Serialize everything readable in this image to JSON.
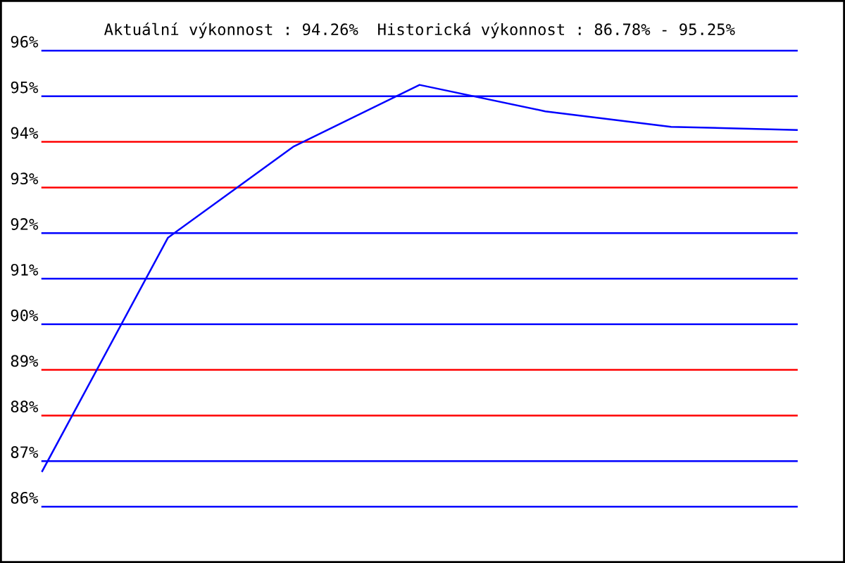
{
  "chart_data": {
    "type": "line",
    "title": "Aktuální výkonnost : 94.26%  Historická výkonnost : 86.78% - 95.25%",
    "categories": [
      null,
      null,
      null,
      null,
      null,
      null,
      null
    ],
    "series": [
      {
        "color": "#0000ff",
        "values": [
          86.78,
          91.9,
          93.9,
          95.25,
          94.67,
          94.33,
          94.26
        ]
      }
    ],
    "ylim": [
      86,
      96
    ],
    "yticks": [
      {
        "value": 86,
        "label": "86%"
      },
      {
        "value": 87,
        "label": "87%"
      },
      {
        "value": 88,
        "label": "88%"
      },
      {
        "value": 89,
        "label": "89%"
      },
      {
        "value": 90,
        "label": "90%"
      },
      {
        "value": 91,
        "label": "91%"
      },
      {
        "value": 92,
        "label": "92%"
      },
      {
        "value": 93,
        "label": "93%"
      },
      {
        "value": 94,
        "label": "94%"
      },
      {
        "value": 95,
        "label": "95%"
      },
      {
        "value": 96,
        "label": "96%"
      }
    ],
    "ref_lines": [
      {
        "axis": "y",
        "value": 87,
        "color": "#0000ff"
      },
      {
        "axis": "y",
        "value": 88,
        "color": "#ff0000"
      },
      {
        "axis": "y",
        "value": 89,
        "color": "#ff0000"
      },
      {
        "axis": "y",
        "value": 90,
        "color": "#0000ff"
      },
      {
        "axis": "y",
        "value": 91,
        "color": "#0000ff"
      },
      {
        "axis": "y",
        "value": 92,
        "color": "#0000ff"
      },
      {
        "axis": "y",
        "value": 93,
        "color": "#ff0000"
      },
      {
        "axis": "y",
        "value": 94,
        "color": "#ff0000"
      },
      {
        "axis": "y",
        "value": 95,
        "color": "#0000ff"
      }
    ],
    "grid": false,
    "legend": false,
    "marker": "none",
    "line_style": "solid"
  }
}
